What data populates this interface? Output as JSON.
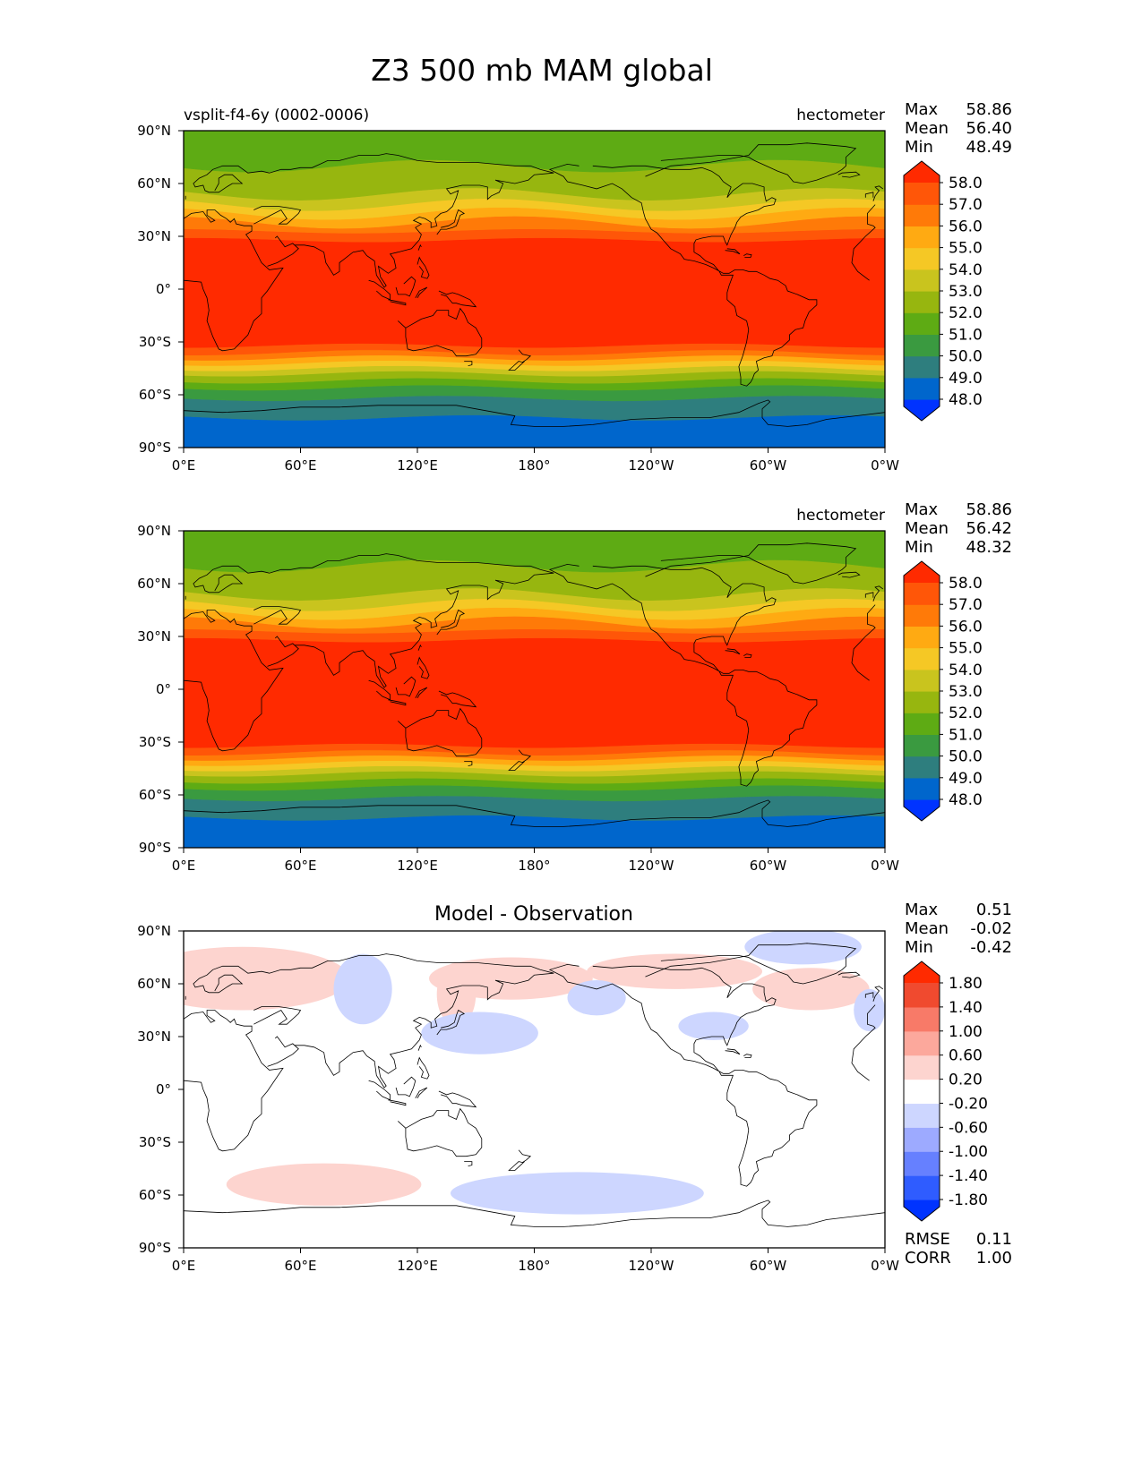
{
  "figure": {
    "title": "Z3 500 mb MAM global"
  },
  "colors": {
    "full_field": [
      "#0033ff",
      "#0066cc",
      "#2e7e7e",
      "#3a9a40",
      "#5eab14",
      "#97b60f",
      "#c9c41e",
      "#f5c825",
      "#ffaa12",
      "#ff7a08",
      "#ff5608",
      "#ff2a00"
    ],
    "diff": [
      "#0033ff",
      "#2f5cff",
      "#6680ff",
      "#9daaff",
      "#cdd6ff",
      "#ffffff",
      "#fdd4cf",
      "#fca89c",
      "#f87a68",
      "#f04a2f",
      "#ff2a00"
    ],
    "coastline": "#000000"
  },
  "chart_data": [
    {
      "type": "heatmap",
      "subtitle_left": "vsplit-f4-6y (0002-0006)",
      "subtitle_right": "hectometer",
      "stats": {
        "labels": [
          "Max",
          "Mean",
          "Min"
        ],
        "values": [
          "58.86",
          "56.40",
          "48.49"
        ]
      },
      "x_ticks": [
        "0°E",
        "60°E",
        "120°E",
        "180°",
        "120°W",
        "60°W",
        "0°W"
      ],
      "y_ticks": [
        "90°N",
        "60°N",
        "30°N",
        "0°",
        "30°S",
        "60°S",
        "90°S"
      ],
      "xlim": [
        0,
        360
      ],
      "ylim": [
        -90,
        90
      ],
      "levels": [
        "48.0",
        "49.0",
        "50.0",
        "51.0",
        "52.0",
        "53.0",
        "54.0",
        "55.0",
        "56.0",
        "57.0",
        "58.0"
      ],
      "latitude_boundaries": [
        -90,
        -73,
        -62,
        -56,
        -52,
        -48,
        -45,
        -42,
        -39,
        -36,
        -32,
        28,
        33,
        38,
        43,
        48,
        54,
        70,
        90
      ],
      "band_color_index": [
        1,
        2,
        3,
        4,
        5,
        6,
        7,
        8,
        9,
        10,
        11,
        10,
        9,
        8,
        7,
        6,
        5,
        4
      ]
    },
    {
      "type": "heatmap",
      "subtitle_left": "",
      "subtitle_right": "hectometer",
      "stats": {
        "labels": [
          "Max",
          "Mean",
          "Min"
        ],
        "values": [
          "58.86",
          "56.42",
          "48.32"
        ]
      },
      "x_ticks": [
        "0°E",
        "60°E",
        "120°E",
        "180°",
        "120°W",
        "60°W",
        "0°W"
      ],
      "y_ticks": [
        "90°N",
        "60°N",
        "30°N",
        "0°",
        "30°S",
        "60°S",
        "90°S"
      ],
      "xlim": [
        0,
        360
      ],
      "ylim": [
        -90,
        90
      ],
      "levels": [
        "48.0",
        "49.0",
        "50.0",
        "51.0",
        "52.0",
        "53.0",
        "54.0",
        "55.0",
        "56.0",
        "57.0",
        "58.0"
      ],
      "latitude_boundaries": [
        -90,
        -73,
        -62,
        -56,
        -52,
        -48,
        -45,
        -42,
        -39,
        -36,
        -32,
        28,
        33,
        38,
        43,
        48,
        54,
        70,
        90
      ],
      "band_color_index": [
        1,
        2,
        3,
        4,
        5,
        6,
        7,
        8,
        9,
        10,
        11,
        10,
        9,
        8,
        7,
        6,
        5,
        4
      ]
    },
    {
      "type": "heatmap",
      "subtitle_center": "Model - Observation",
      "stats": {
        "labels": [
          "Max",
          "Mean",
          "Min"
        ],
        "values": [
          "0.51",
          "-0.02",
          "-0.42"
        ]
      },
      "bottom_stats": {
        "labels": [
          "RMSE",
          "CORR"
        ],
        "values": [
          "0.11",
          "1.00"
        ]
      },
      "x_ticks": [
        "0°E",
        "60°E",
        "120°E",
        "180°",
        "120°W",
        "60°W",
        "0°W"
      ],
      "y_ticks": [
        "90°N",
        "60°N",
        "30°N",
        "0°",
        "30°S",
        "60°S",
        "90°S"
      ],
      "xlim": [
        0,
        360
      ],
      "ylim": [
        -90,
        90
      ],
      "levels": [
        "-1.80",
        "-1.40",
        "-1.00",
        "-0.60",
        "-0.20",
        "0.20",
        "0.60",
        "1.00",
        "1.40",
        "1.80"
      ],
      "anomalies": [
        {
          "lon": 30,
          "lat": 63,
          "value": 0.4
        },
        {
          "lon": 168,
          "lat": 63,
          "value": 0.4
        },
        {
          "lon": 252,
          "lat": 67,
          "value": 0.4
        },
        {
          "lon": 322,
          "lat": 57,
          "value": 0.4
        },
        {
          "lon": 72,
          "lat": -54,
          "value": 0.4
        },
        {
          "lon": 140,
          "lat": 54,
          "value": 0.4
        },
        {
          "lon": 92,
          "lat": 57,
          "value": -0.4
        },
        {
          "lon": 152,
          "lat": 32,
          "value": -0.4
        },
        {
          "lon": 212,
          "lat": 52,
          "value": -0.4
        },
        {
          "lon": 272,
          "lat": 36,
          "value": -0.4
        },
        {
          "lon": 318,
          "lat": 81,
          "value": -0.4
        },
        {
          "lon": 202,
          "lat": -59,
          "value": -0.4
        },
        {
          "lon": 352,
          "lat": 45,
          "value": -0.4
        }
      ]
    }
  ]
}
